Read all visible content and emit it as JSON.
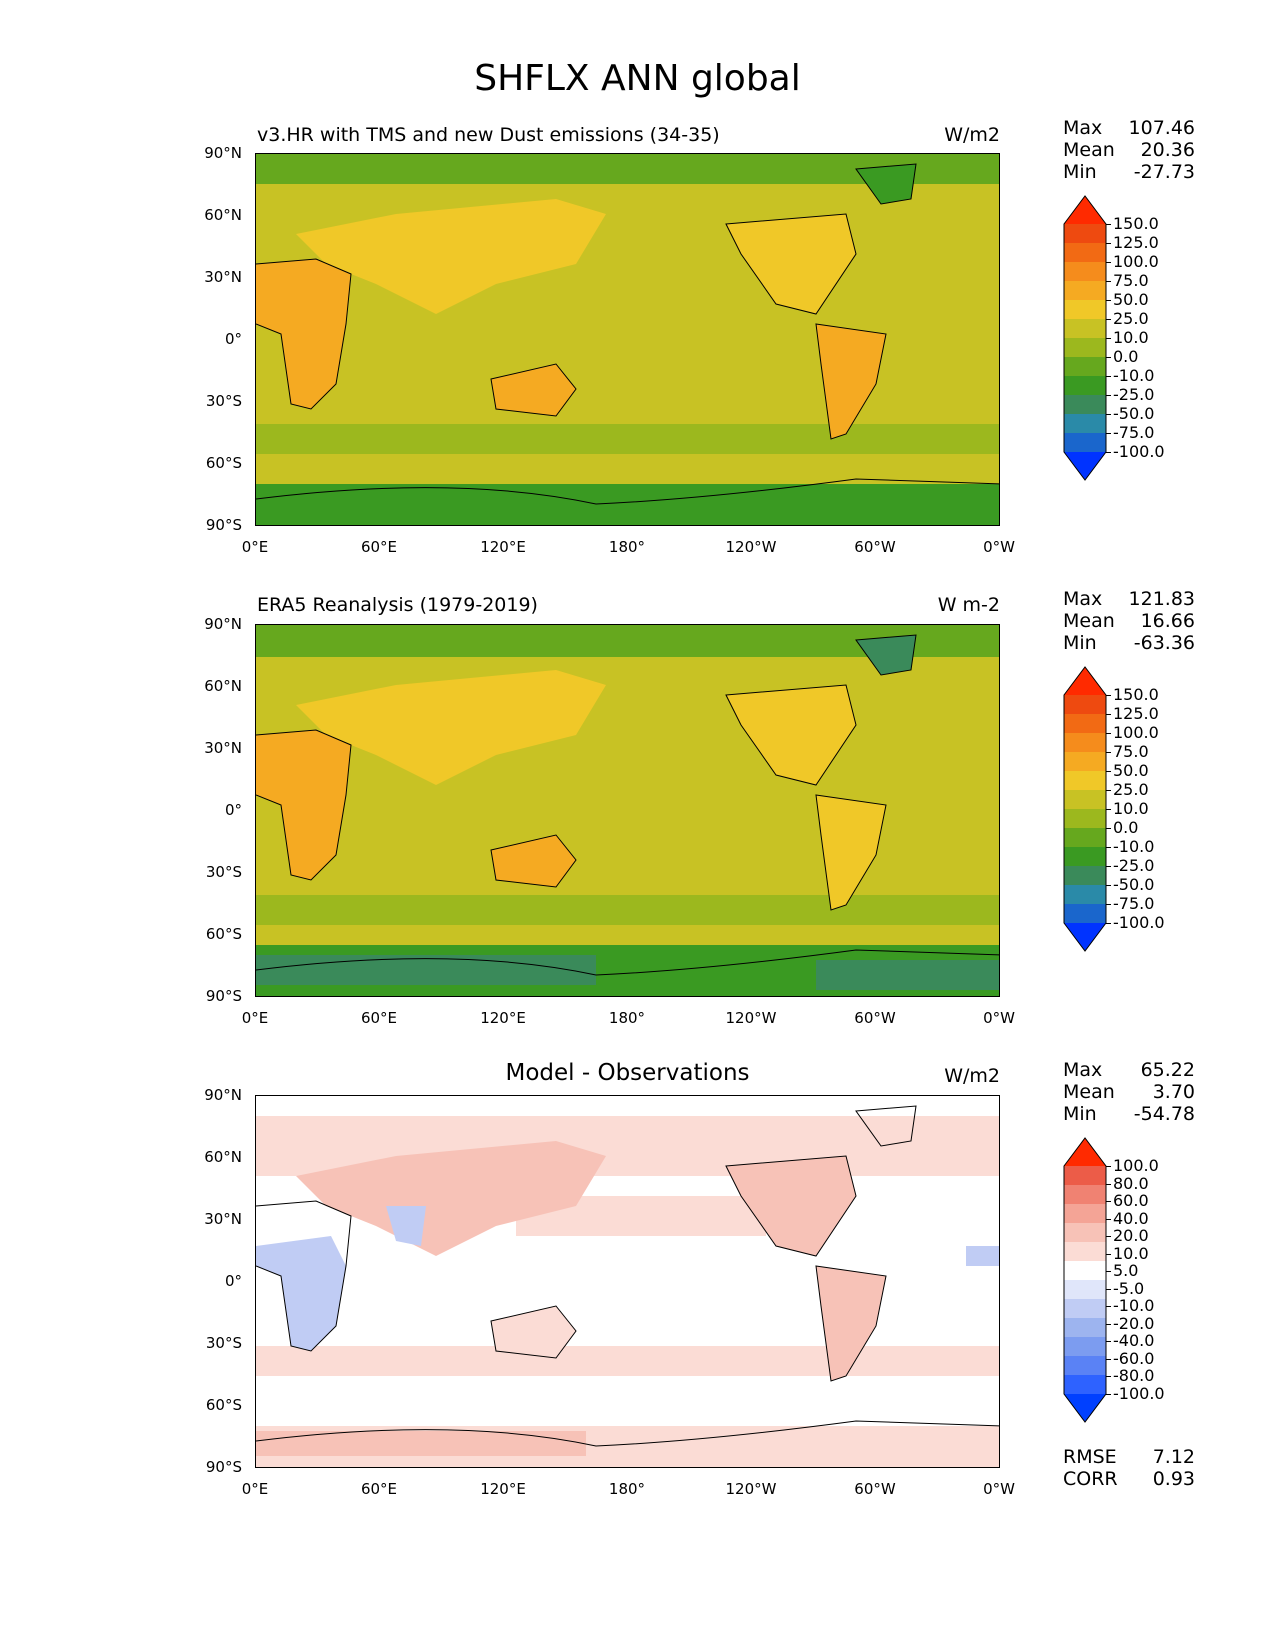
{
  "figure_title": "SHFLX ANN global",
  "axis_ticks": {
    "lat": [
      "90°N",
      "60°N",
      "30°N",
      "0°",
      "30°S",
      "60°S",
      "90°S"
    ],
    "lon": [
      "0°E",
      "60°E",
      "120°E",
      "180°",
      "120°W",
      "60°W",
      "0°W"
    ]
  },
  "stat_labels": {
    "max": "Max",
    "mean": "Mean",
    "min": "Min",
    "rmse": "RMSE",
    "corr": "CORR"
  },
  "colors": {
    "abs_levels": [
      "#0033ff",
      "#1a66cc",
      "#2a8aa8",
      "#3a8a5a",
      "#3a9a22",
      "#66a81e",
      "#9cb81e",
      "#c8c224",
      "#f0c828",
      "#f5aa22",
      "#f58c1c",
      "#f26a14",
      "#ee4a10",
      "#ff2a00"
    ],
    "diff_levels": [
      "#0040ff",
      "#2e62ff",
      "#5a82f5",
      "#7c9cf0",
      "#9db4ef",
      "#c0ccf4",
      "#e0e6fa",
      "#ffffff",
      "#fbdcd5",
      "#f7c2b7",
      "#f4a496",
      "#f08272",
      "#ec5c48",
      "#ff2a00"
    ],
    "land_outline": "#000000"
  },
  "chart_data": [
    {
      "type": "heatmap",
      "title": "v3.HR with TMS and new Dust emissions (34-35)",
      "units": "W/m2",
      "xlim": [
        0,
        360
      ],
      "ylim": [
        -90,
        90
      ],
      "stats": {
        "max": "107.46",
        "mean": "20.36",
        "min": "-27.73"
      },
      "colorbar_levels": [
        "150.0",
        "125.0",
        "100.0",
        "75.0",
        "50.0",
        "25.0",
        "10.0",
        "0.0",
        "-10.0",
        "-25.0",
        "-50.0",
        "-75.0",
        "-100.0"
      ]
    },
    {
      "type": "heatmap",
      "title": "ERA5 Reanalysis (1979-2019)",
      "units": "W m-2",
      "xlim": [
        0,
        360
      ],
      "ylim": [
        -90,
        90
      ],
      "stats": {
        "max": "121.83",
        "mean": "16.66",
        "min": "-63.36"
      },
      "colorbar_levels": [
        "150.0",
        "125.0",
        "100.0",
        "75.0",
        "50.0",
        "25.0",
        "10.0",
        "0.0",
        "-10.0",
        "-25.0",
        "-50.0",
        "-75.0",
        "-100.0"
      ]
    },
    {
      "type": "heatmap",
      "title": "Model - Observations",
      "units": "W/m2",
      "xlim": [
        0,
        360
      ],
      "ylim": [
        -90,
        90
      ],
      "stats": {
        "max": "65.22",
        "mean": "3.70",
        "min": "-54.78",
        "rmse": "7.12",
        "corr": "0.93"
      },
      "colorbar_levels": [
        "100.0",
        "80.0",
        "60.0",
        "40.0",
        "20.0",
        "10.0",
        "5.0",
        "-5.0",
        "-10.0",
        "-20.0",
        "-40.0",
        "-60.0",
        "-80.0",
        "-100.0"
      ]
    }
  ]
}
